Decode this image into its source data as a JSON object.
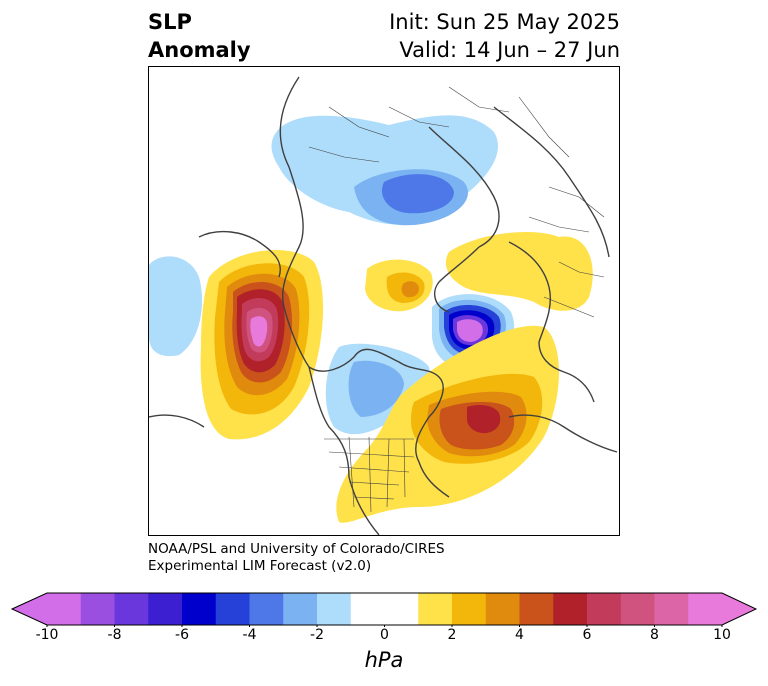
{
  "title": {
    "left_line1": "SLP",
    "left_line2": "Anomaly",
    "right_line1": "Init: Sun 25 May 2025",
    "right_line2": "Valid: 14 Jun – 27 Jun"
  },
  "credit": {
    "line1": "NOAA/PSL and University of Colorado/CIRES",
    "line2": "Experimental LIM Forecast (v2.0)"
  },
  "colorbar": {
    "unit": "hPa",
    "levels": [
      -10,
      -9,
      -8,
      -7,
      -6,
      -5,
      -4,
      -3,
      -2,
      -1,
      1,
      2,
      3,
      4,
      5,
      6,
      7,
      8,
      9,
      10
    ],
    "colors": [
      "#d36ee9",
      "#9b4fe0",
      "#6a37dc",
      "#3b1fd1",
      "#0000cc",
      "#2541d8",
      "#4e78e8",
      "#7bb3f2",
      "#aedcfb",
      "#ffffff",
      "#ffe14a",
      "#f3b70b",
      "#e18b0e",
      "#c9531a",
      "#b1212a",
      "#c23b5b",
      "#d0527f",
      "#dc65a8",
      "#e87adc"
    ],
    "extend_min_color": "#d36ee9",
    "extend_max_color": "#e87adc",
    "tick_labels": [
      "-10",
      "-8",
      "-6",
      "-4",
      "-2",
      "0",
      "2",
      "4",
      "6",
      "8",
      "10"
    ],
    "tick_values": [
      -10,
      -8,
      -6,
      -4,
      -2,
      0,
      2,
      4,
      6,
      8,
      10
    ]
  }
}
